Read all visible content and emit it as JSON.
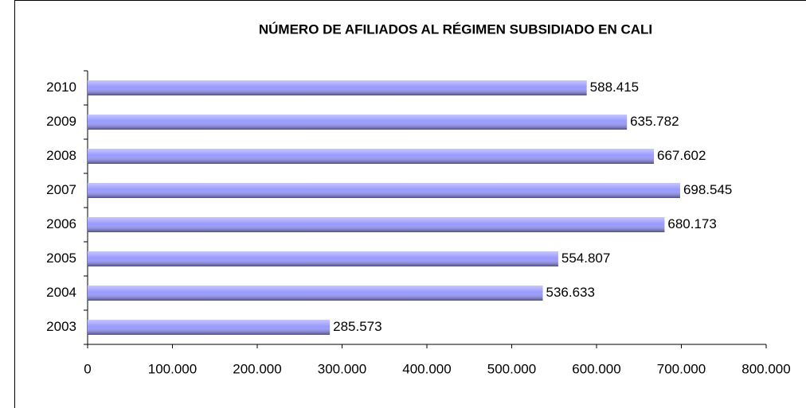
{
  "chart_data": {
    "type": "bar",
    "orientation": "horizontal",
    "title": "NÚMERO DE AFILIADOS AL RÉGIMEN SUBSIDIADO EN CALI",
    "categories": [
      "2003",
      "2004",
      "2005",
      "2006",
      "2007",
      "2008",
      "2009",
      "2010"
    ],
    "values": [
      285573,
      536633,
      554807,
      680173,
      698545,
      667602,
      635782,
      588415
    ],
    "value_labels": [
      "285.573",
      "536.633",
      "554.807",
      "680.173",
      "698.545",
      "667.602",
      "635.782",
      "588.415"
    ],
    "color": "#9999ff",
    "xlim": [
      0,
      800000
    ],
    "xticks": [
      0,
      {
        "value": 100000,
        "label": "100.000"
      },
      {
        "value": 200000,
        "label": "200.000"
      },
      {
        "value": 300000,
        "label": "300.000"
      },
      {
        "value": 400000,
        "label": "400.000"
      },
      {
        "value": 500000,
        "label": "500.000"
      },
      {
        "value": 600000,
        "label": "600.000"
      },
      {
        "value": 700000,
        "label": "700.000"
      },
      {
        "value": 800000,
        "label": "800.000"
      }
    ],
    "grid": false
  }
}
